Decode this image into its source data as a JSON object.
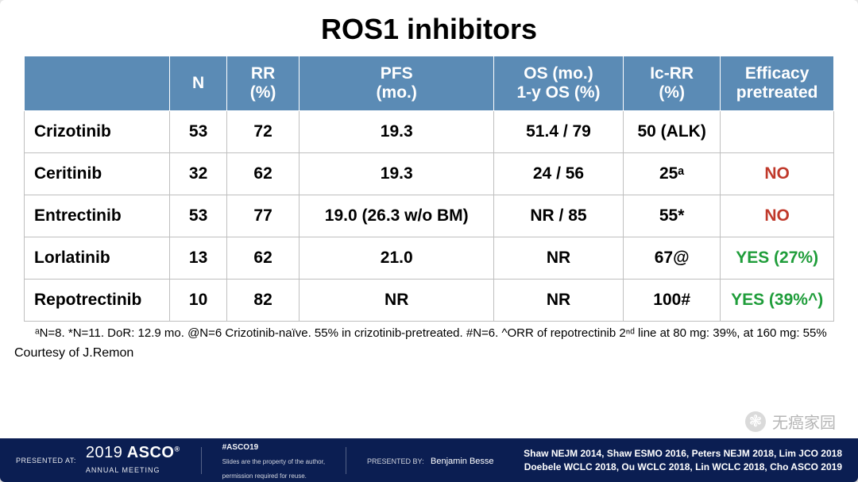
{
  "title": {
    "text": "ROS1 inhibitors",
    "fontsize": 36,
    "color": "#000000"
  },
  "table": {
    "header_bg": "#5b8bb5",
    "header_fg": "#ffffff",
    "border_color": "#bfbfbf",
    "row_fontsize": 21,
    "header_fontsize": 21,
    "col_widths_pct": [
      18,
      7,
      9,
      24,
      16,
      12,
      14
    ],
    "columns": [
      {
        "label": "",
        "html": ""
      },
      {
        "label": "N",
        "html": "N"
      },
      {
        "label": "RR (%)",
        "html": "RR<br>(%)"
      },
      {
        "label": "PFS (mo.)",
        "html": "PFS<br>(mo.)"
      },
      {
        "label": "OS (mo.) 1-y OS (%)",
        "html": "OS (mo.)<br>1-y OS (%)"
      },
      {
        "label": "Ic-RR (%)",
        "html": "Ic-RR<br>(%)"
      },
      {
        "label": "Efficacy pretreated",
        "html": "Efficacy<br>pretreated"
      }
    ],
    "rows": [
      {
        "name": "Crizotinib",
        "n": "53",
        "rr": "72",
        "pfs": "19.3",
        "os": "51.4 / 79",
        "icrr": "50 (ALK)",
        "eff": "",
        "eff_style": ""
      },
      {
        "name": "Ceritinib",
        "n": "32",
        "rr": "62",
        "pfs": "19.3",
        "os": "24 / 56",
        "icrr": "25ᵃ",
        "eff": "NO",
        "eff_style": "no"
      },
      {
        "name": "Entrectinib",
        "n": "53",
        "rr": "77",
        "pfs": "19.0 (26.3 w/o BM)",
        "os": "NR / 85",
        "icrr": "55*",
        "eff": "NO",
        "eff_style": "no"
      },
      {
        "name": "Lorlatinib",
        "n": "13",
        "rr": "62",
        "pfs": "21.0",
        "os": "NR",
        "icrr": "67@",
        "eff": "YES (27%)",
        "eff_style": "yes"
      },
      {
        "name": "Repotrectinib",
        "n": "10",
        "rr": "82",
        "pfs": "NR",
        "os": "NR",
        "icrr": "100#",
        "eff": "YES  (39%^)",
        "eff_style": "yes"
      }
    ]
  },
  "footnote": {
    "text": "ᵃN=8. *N=11. DoR: 12.9 mo. @N=6 Crizotinib-naïve. 55% in crizotinib-pretreated. #N=6. ^ORR of repotrectinib 2ⁿᵈ line at  80 mg: 39%, at 160 mg: 55%",
    "fontsize": 15
  },
  "courtesy": {
    "text": "Courtesy of J.Remon",
    "fontsize": 16
  },
  "footer": {
    "bg": "#0b1e52",
    "presented_at_label": "PRESENTED AT:",
    "conference_year": "2019",
    "conference": "ASCO",
    "conference_sub": "ANNUAL MEETING",
    "hashtag": "#ASCO19",
    "rights_line1": "Slides are the property of the author,",
    "rights_line2": "permission required for reuse.",
    "presenter_label": "PRESENTED BY:",
    "presenter": "Benjamin Besse",
    "refs_line1": "Shaw NEJM 2014, Shaw ESMO 2016, Peters NEJM 2018, Lim JCO 2018",
    "refs_line2": "Doebele WCLC 2018, Ou WCLC 2018, Lin WCLC 2018, Cho ASCO 2019"
  },
  "watermark": {
    "text": "无癌家园",
    "icon_glyph": "❃"
  }
}
